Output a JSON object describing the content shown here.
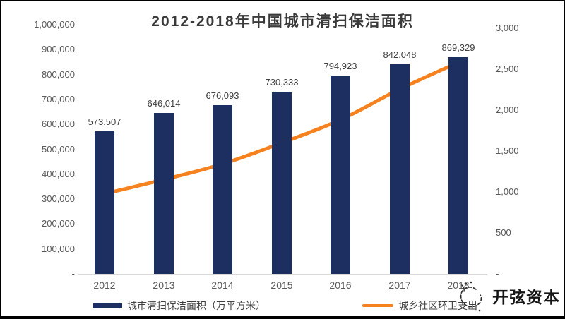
{
  "chart_data": {
    "type": "bar",
    "title": "2012-2018年中国城市清扫保洁面积",
    "categories": [
      "2012",
      "2013",
      "2014",
      "2015",
      "2016",
      "2017",
      "2018"
    ],
    "series": [
      {
        "name": "城市清扫保洁面积（万平方米）",
        "type": "bar",
        "axis": "left",
        "color": "#1C2F60",
        "values": [
          573507,
          646014,
          676093,
          730333,
          794923,
          842048,
          869329
        ],
        "labels": [
          "573,507",
          "646,014",
          "676,093",
          "730,333",
          "794,923",
          "842,048",
          "869,329"
        ]
      },
      {
        "name": "城乡社区环卫支出",
        "type": "line",
        "axis": "right",
        "color": "#F5821F",
        "values": [
          978,
          1152,
          1342,
          1600,
          1882,
          2256,
          2582
        ]
      }
    ],
    "left_axis": {
      "min": 0,
      "max": 1000000,
      "step": 100000,
      "tick_labels": [
        "-",
        "100,000",
        "200,000",
        "300,000",
        "400,000",
        "500,000",
        "600,000",
        "700,000",
        "800,000",
        "900,000",
        "1,000,000"
      ]
    },
    "right_axis": {
      "min": 0,
      "max": 3000,
      "step": 500,
      "tick_labels": [
        "-",
        "500",
        "1,000",
        "1,500",
        "2,000",
        "2,500",
        "3,000"
      ]
    },
    "legend_position": "bottom",
    "grid": false
  },
  "legend": {
    "bar_label": "城市清扫保洁面积（万平方米）",
    "line_label": "城乡社区环卫支出"
  },
  "watermark": {
    "text": "开弦资本"
  },
  "colors": {
    "bar": "#1C2F60",
    "line": "#F5821F",
    "axis_line": "#d9d9d9",
    "tick_text": "#595959",
    "label_text": "#3f3f3f",
    "title_text": "#3a3a3a",
    "frame_border": "#000000"
  }
}
